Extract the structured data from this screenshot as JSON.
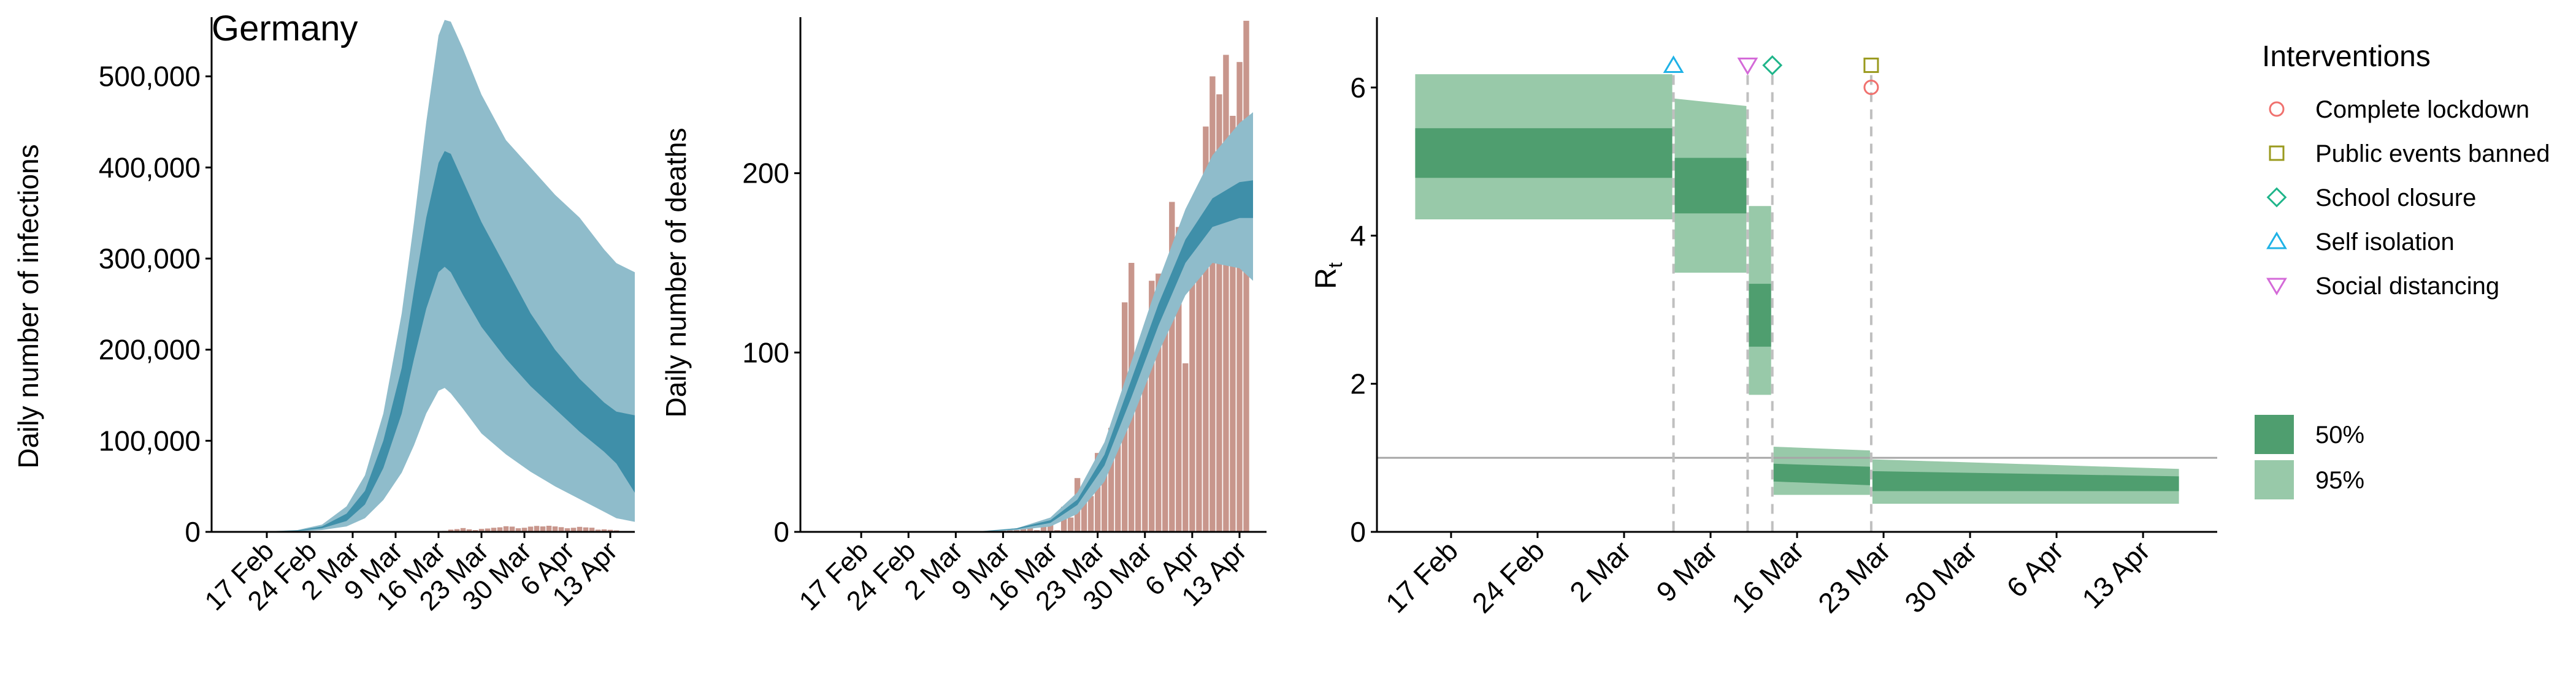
{
  "colors": {
    "infect_95": "#8fbccb",
    "infect_50": "#3f8fa9",
    "deaths_bar": "#c8968c",
    "rt_95": "#98c9a9",
    "rt_50": "#4f9e6f",
    "lockdown": "#f0716e",
    "public_events": "#9a9a1e",
    "school": "#1fb58a",
    "self_isolation": "#1fb2e6",
    "social_distancing": "#d46ad8",
    "hline": "#a6a6a6",
    "vline": "#bfbfbf"
  },
  "chart_data": [
    {
      "type": "area",
      "title": "Germany",
      "ylabel": "Daily number of infections",
      "xlim": [
        "2020-02-08",
        "2020-04-17"
      ],
      "ylim": [
        0,
        565000
      ],
      "yticks": [
        0,
        100000,
        200000,
        300000,
        400000,
        500000
      ],
      "ytick_labels": [
        "0",
        "100,000",
        "200,000",
        "300,000",
        "400,000",
        "500,000"
      ],
      "xtick_labels": [
        "17 Feb",
        "24 Feb",
        "2 Mar",
        "9 Mar",
        "16 Mar",
        "23 Mar",
        "30 Mar",
        "6 Apr",
        "13 Apr"
      ],
      "dates": [
        "2020-02-08",
        "2020-02-15",
        "2020-02-22",
        "2020-02-26",
        "2020-03-01",
        "2020-03-04",
        "2020-03-07",
        "2020-03-10",
        "2020-03-12",
        "2020-03-14",
        "2020-03-16",
        "2020-03-17",
        "2020-03-18",
        "2020-03-20",
        "2020-03-23",
        "2020-03-27",
        "2020-03-31",
        "2020-04-04",
        "2020-04-08",
        "2020-04-12",
        "2020-04-14",
        "2020-04-17"
      ],
      "band95_lo": [
        0,
        0,
        500,
        2000,
        6000,
        15000,
        35000,
        65000,
        95000,
        130000,
        155000,
        158000,
        152000,
        135000,
        108000,
        85000,
        66000,
        50000,
        36000,
        22000,
        15000,
        11000
      ],
      "band95_hi": [
        0,
        0,
        2000,
        8000,
        28000,
        62000,
        130000,
        240000,
        340000,
        450000,
        545000,
        562000,
        560000,
        530000,
        480000,
        430000,
        400000,
        370000,
        345000,
        310000,
        295000,
        285000
      ],
      "band50_lo": [
        0,
        0,
        1000,
        4000,
        12000,
        30000,
        70000,
        130000,
        190000,
        245000,
        285000,
        291000,
        285000,
        260000,
        225000,
        190000,
        160000,
        135000,
        110000,
        88000,
        75000,
        43000
      ],
      "band50_hi": [
        0,
        0,
        1500,
        6000,
        20000,
        45000,
        100000,
        180000,
        265000,
        345000,
        405000,
        418000,
        415000,
        385000,
        340000,
        290000,
        240000,
        200000,
        168000,
        142000,
        132000,
        128000
      ],
      "bars_dates": [
        "2020-03-17",
        "2020-03-18",
        "2020-03-19",
        "2020-03-20",
        "2020-03-21",
        "2020-03-22",
        "2020-03-23",
        "2020-03-24",
        "2020-03-25",
        "2020-03-26",
        "2020-03-27",
        "2020-03-28",
        "2020-03-29",
        "2020-03-30",
        "2020-03-31",
        "2020-04-01",
        "2020-04-02",
        "2020-04-03",
        "2020-04-04",
        "2020-04-05",
        "2020-04-06",
        "2020-04-07",
        "2020-04-08",
        "2020-04-09",
        "2020-04-10",
        "2020-04-11",
        "2020-04-12",
        "2020-04-13",
        "2020-04-14"
      ],
      "bars_values": [
        1100,
        2500,
        3000,
        4200,
        2800,
        2000,
        3300,
        3700,
        4500,
        5000,
        6200,
        5800,
        4000,
        4500,
        5800,
        6500,
        6000,
        6700,
        6000,
        5200,
        4000,
        4500,
        5500,
        4900,
        4600,
        2500,
        2800,
        2300,
        1700
      ]
    },
    {
      "type": "bar",
      "ylabel": "Daily number of deaths",
      "xlim": [
        "2020-02-08",
        "2020-04-17"
      ],
      "ylim": [
        0,
        287
      ],
      "yticks": [
        0,
        100,
        200
      ],
      "ytick_labels": [
        "0",
        "100",
        "200"
      ],
      "xtick_labels": [
        "17 Feb",
        "24 Feb",
        "2 Mar",
        "9 Mar",
        "16 Mar",
        "23 Mar",
        "30 Mar",
        "6 Apr",
        "13 Apr"
      ],
      "bars_dates": [
        "2020-03-09",
        "2020-03-10",
        "2020-03-11",
        "2020-03-12",
        "2020-03-13",
        "2020-03-14",
        "2020-03-15",
        "2020-03-16",
        "2020-03-17",
        "2020-03-18",
        "2020-03-19",
        "2020-03-20",
        "2020-03-21",
        "2020-03-22",
        "2020-03-23",
        "2020-03-24",
        "2020-03-25",
        "2020-03-26",
        "2020-03-27",
        "2020-03-28",
        "2020-03-29",
        "2020-03-30",
        "2020-03-31",
        "2020-04-01",
        "2020-04-02",
        "2020-04-03",
        "2020-04-04",
        "2020-04-05",
        "2020-04-06",
        "2020-04-07",
        "2020-04-08",
        "2020-04-09",
        "2020-04-10",
        "2020-04-11",
        "2020-04-12",
        "2020-04-13",
        "2020-04-14"
      ],
      "bars_values": [
        1,
        1,
        1,
        2,
        3,
        1,
        3,
        4,
        1,
        14,
        8,
        30,
        22,
        20,
        44,
        46,
        58,
        65,
        128,
        150,
        97,
        112,
        140,
        144,
        122,
        184,
        170,
        94,
        148,
        190,
        226,
        254,
        244,
        266,
        232,
        262,
        285
      ],
      "dates": [
        "2020-03-01",
        "2020-03-06",
        "2020-03-11",
        "2020-03-16",
        "2020-03-20",
        "2020-03-24",
        "2020-03-28",
        "2020-04-01",
        "2020-04-05",
        "2020-04-09",
        "2020-04-13",
        "2020-04-15"
      ],
      "band95_lo": [
        0,
        0,
        1,
        3,
        10,
        28,
        62,
        100,
        132,
        150,
        147,
        140
      ],
      "band95_hi": [
        0,
        0.5,
        2,
        8,
        22,
        50,
        95,
        140,
        180,
        210,
        228,
        234
      ],
      "band50_lo": [
        0,
        0.2,
        1.5,
        5,
        15,
        37,
        75,
        115,
        150,
        170,
        175,
        175
      ],
      "band50_hi": [
        0,
        0.3,
        2,
        6.5,
        18,
        43,
        85,
        127,
        163,
        186,
        195,
        196
      ]
    },
    {
      "type": "area",
      "ylabel": "R",
      "ylabel_sub": "t",
      "xlim": [
        "2020-02-11",
        "2020-04-19"
      ],
      "ylim": [
        0,
        6.95
      ],
      "yticks": [
        0,
        2,
        4,
        6
      ],
      "ytick_labels": [
        "0",
        "2",
        "4",
        "6"
      ],
      "xtick_labels": [
        "17 Feb",
        "24 Feb",
        "2 Mar",
        "9 Mar",
        "16 Mar",
        "23 Mar",
        "30 Mar",
        "6 Apr",
        "13 Apr"
      ],
      "reference_line": 1,
      "segments": [
        {
          "start": "2020-02-14",
          "end": "2020-03-06",
          "lo95_start": 4.22,
          "hi95_start": 6.18,
          "lo95_end": 4.22,
          "hi95_end": 6.18,
          "lo50_start": 4.78,
          "hi50_start": 5.45,
          "lo50_end": 4.78,
          "hi50_end": 5.45
        },
        {
          "start": "2020-03-06",
          "end": "2020-03-12",
          "lo95_start": 3.5,
          "hi95_start": 5.85,
          "lo95_end": 3.5,
          "hi95_end": 5.75,
          "lo50_start": 4.3,
          "hi50_start": 5.05,
          "lo50_end": 4.3,
          "hi50_end": 5.05
        },
        {
          "start": "2020-03-12",
          "end": "2020-03-14",
          "lo95_start": 1.85,
          "hi95_start": 4.4,
          "lo95_end": 1.85,
          "hi95_end": 4.4,
          "lo50_start": 2.5,
          "hi50_start": 3.35,
          "lo50_end": 2.5,
          "hi50_end": 3.35
        },
        {
          "start": "2020-03-14",
          "end": "2020-03-22",
          "lo95_start": 0.5,
          "hi95_start": 1.15,
          "lo95_end": 0.5,
          "hi95_end": 1.1,
          "lo50_start": 0.68,
          "hi50_start": 0.92,
          "lo50_end": 0.63,
          "hi50_end": 0.88
        },
        {
          "start": "2020-03-22",
          "end": "2020-04-16",
          "lo95_start": 0.38,
          "hi95_start": 0.98,
          "lo95_end": 0.38,
          "hi95_end": 0.85,
          "lo50_start": 0.55,
          "hi50_start": 0.82,
          "lo50_end": 0.55,
          "hi50_end": 0.75
        }
      ],
      "interventions": [
        {
          "name": "Self isolation",
          "date": "2020-03-06",
          "marker": "triangle-up",
          "color_key": "self_isolation",
          "stack": 0
        },
        {
          "name": "Social distancing",
          "date": "2020-03-12",
          "marker": "triangle-down",
          "color_key": "social_distancing",
          "stack": 0
        },
        {
          "name": "School closure",
          "date": "2020-03-14",
          "marker": "diamond",
          "color_key": "school",
          "stack": 0
        },
        {
          "name": "Public events banned",
          "date": "2020-03-22",
          "marker": "square",
          "color_key": "public_events",
          "stack": 0
        },
        {
          "name": "Complete lockdown",
          "date": "2020-03-22",
          "marker": "circle",
          "color_key": "lockdown",
          "stack": 1
        }
      ]
    }
  ],
  "legend": {
    "interventions_title": "Interventions",
    "interventions": [
      {
        "label": "Complete lockdown",
        "marker": "circle",
        "color_key": "lockdown"
      },
      {
        "label": "Public events banned",
        "marker": "square",
        "color_key": "public_events"
      },
      {
        "label": "School closure",
        "marker": "diamond",
        "color_key": "school"
      },
      {
        "label": "Self isolation",
        "marker": "triangle-up",
        "color_key": "self_isolation"
      },
      {
        "label": "Social distancing",
        "marker": "triangle-down",
        "color_key": "social_distancing"
      }
    ],
    "bands": [
      {
        "label": "50%",
        "color_key": "rt_50"
      },
      {
        "label": "95%",
        "color_key": "rt_95"
      }
    ]
  }
}
